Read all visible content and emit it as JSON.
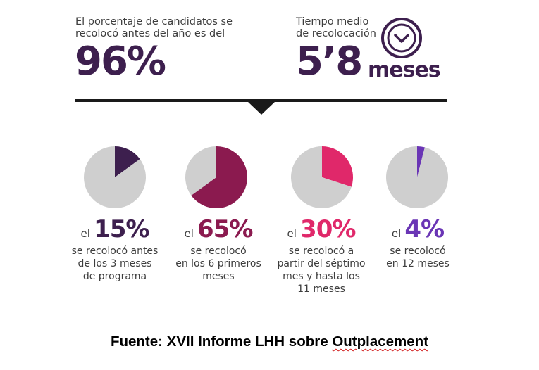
{
  "header": {
    "left_text": "El porcentaje de candidatos se recolocó antes del año es del",
    "left_value": "96%",
    "right_text": "Tiempo medio de recolocación",
    "right_value": "5’8",
    "right_unit": "meses",
    "clock_icon": "clock-icon"
  },
  "colors": {
    "dark_purple": "#3d1f4e",
    "wine": "#8b1a4f",
    "pink": "#e0286a",
    "violet": "#6a35b5",
    "grey": "#cfcfcf"
  },
  "chart_data": [
    {
      "type": "pie",
      "values": [
        15,
        85
      ],
      "categories": [
        "15%",
        ""
      ],
      "colors": [
        "#3d1f4e",
        "#cfcfcf"
      ],
      "label_prefix": "el",
      "label_value": "15%",
      "description_lines": [
        "se recolocó antes",
        "de los 3 meses",
        "de programa"
      ]
    },
    {
      "type": "pie",
      "values": [
        65,
        35
      ],
      "categories": [
        "65%",
        ""
      ],
      "colors": [
        "#8b1a4f",
        "#cfcfcf"
      ],
      "label_prefix": "el",
      "label_value": "65%",
      "description_lines": [
        "se recolocó",
        "en los 6 primeros",
        "meses"
      ]
    },
    {
      "type": "pie",
      "values": [
        30,
        70
      ],
      "categories": [
        "30%",
        ""
      ],
      "colors": [
        "#e0286a",
        "#cfcfcf"
      ],
      "label_prefix": "el",
      "label_value": "30%",
      "description_lines": [
        "se recolocó a",
        "partir del séptimo",
        "mes y hasta los",
        "11 meses"
      ]
    },
    {
      "type": "pie",
      "values": [
        4,
        96
      ],
      "categories": [
        "4%",
        ""
      ],
      "colors": [
        "#6a35b5",
        "#cfcfcf"
      ],
      "label_prefix": "el",
      "label_value": "4%",
      "description_lines": [
        "se recolocó",
        "en 12 meses"
      ]
    }
  ],
  "source": {
    "prefix": "Fuente: XVII Informe LHH sobre ",
    "highlight": "Outplacement"
  }
}
